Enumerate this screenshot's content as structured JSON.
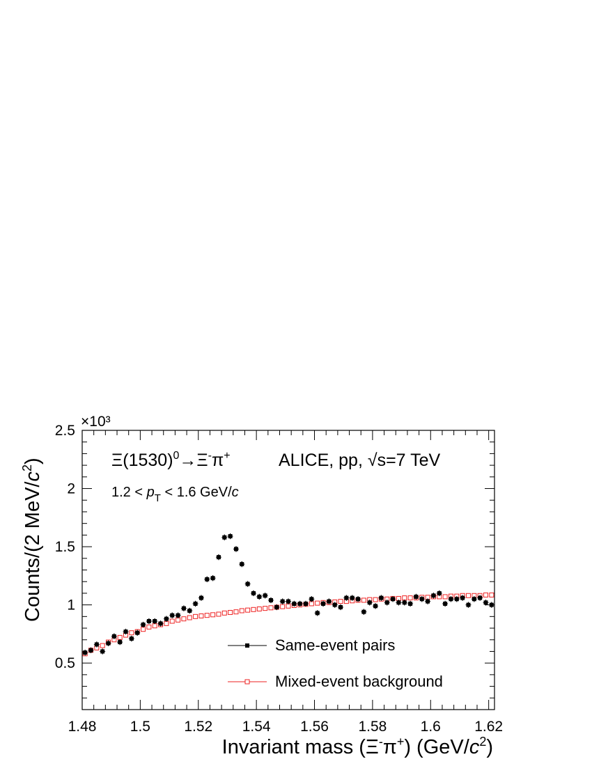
{
  "chart_data": {
    "type": "scatter",
    "xlabel": "Invariant mass (Ξ⁻π⁺) (GeV/c²)",
    "ylabel": "Counts/(2 MeV/c²)",
    "y_multiplier": "×10³",
    "xlim": [
      1.48,
      1.622
    ],
    "ylim": [
      0.1,
      2.5
    ],
    "x_ticks": [
      {
        "value": 1.48,
        "label": "1.48"
      },
      {
        "value": 1.5,
        "label": "1.5"
      },
      {
        "value": 1.52,
        "label": "1.52"
      },
      {
        "value": 1.54,
        "label": "1.54"
      },
      {
        "value": 1.56,
        "label": "1.56"
      },
      {
        "value": 1.58,
        "label": "1.58"
      },
      {
        "value": 1.6,
        "label": "1.6"
      },
      {
        "value": 1.62,
        "label": "1.62"
      }
    ],
    "y_ticks": [
      {
        "value": 0.5,
        "label": "0.5"
      },
      {
        "value": 1.0,
        "label": "1"
      },
      {
        "value": 1.5,
        "label": "1.5"
      },
      {
        "value": 2.0,
        "label": "2"
      },
      {
        "value": 2.5,
        "label": "2.5"
      }
    ],
    "annotations": {
      "decay": "Ξ(1530)⁰→Ξ⁻π⁺",
      "experiment": "ALICE, pp, √s=7 TeV",
      "pt_range": "1.2 < pT < 1.6 GeV/c"
    },
    "legend_position": "bottom-right",
    "series": [
      {
        "name": "Same-event pairs",
        "marker": "filled-square",
        "color": "#000000",
        "x": [
          1.481,
          1.483,
          1.485,
          1.487,
          1.489,
          1.491,
          1.493,
          1.495,
          1.497,
          1.499,
          1.501,
          1.503,
          1.505,
          1.507,
          1.509,
          1.511,
          1.513,
          1.515,
          1.517,
          1.519,
          1.521,
          1.523,
          1.525,
          1.527,
          1.529,
          1.531,
          1.533,
          1.535,
          1.537,
          1.539,
          1.541,
          1.543,
          1.545,
          1.547,
          1.549,
          1.551,
          1.553,
          1.555,
          1.557,
          1.559,
          1.561,
          1.563,
          1.565,
          1.567,
          1.569,
          1.571,
          1.573,
          1.575,
          1.577,
          1.579,
          1.581,
          1.583,
          1.585,
          1.587,
          1.589,
          1.591,
          1.593,
          1.595,
          1.597,
          1.599,
          1.601,
          1.603,
          1.605,
          1.607,
          1.609,
          1.611,
          1.613,
          1.615,
          1.617,
          1.619,
          1.621
        ],
        "y": [
          0.59,
          0.61,
          0.66,
          0.6,
          0.67,
          0.73,
          0.68,
          0.77,
          0.71,
          0.76,
          0.83,
          0.86,
          0.86,
          0.84,
          0.88,
          0.91,
          0.91,
          0.97,
          0.95,
          1.01,
          1.06,
          1.22,
          1.23,
          1.41,
          1.58,
          1.59,
          1.48,
          1.35,
          1.18,
          1.1,
          1.07,
          1.08,
          1.04,
          0.98,
          1.03,
          1.03,
          1.01,
          1.01,
          1.01,
          1.05,
          0.93,
          1.01,
          1.03,
          1.0,
          0.98,
          1.06,
          1.06,
          1.05,
          0.94,
          1.02,
          0.99,
          1.06,
          1.02,
          1.05,
          1.02,
          1.02,
          1.01,
          1.07,
          1.05,
          1.03,
          1.08,
          1.1,
          1.01,
          1.05,
          1.05,
          1.06,
          1.0,
          1.05,
          1.06,
          1.02,
          1.0
        ],
        "yerr": 0.025
      },
      {
        "name": "Mixed-event background",
        "marker": "open-square",
        "color": "#ee2222",
        "x": [
          1.481,
          1.483,
          1.485,
          1.487,
          1.489,
          1.491,
          1.493,
          1.495,
          1.497,
          1.499,
          1.501,
          1.503,
          1.505,
          1.507,
          1.509,
          1.511,
          1.513,
          1.515,
          1.517,
          1.519,
          1.521,
          1.523,
          1.525,
          1.527,
          1.529,
          1.531,
          1.533,
          1.535,
          1.537,
          1.539,
          1.541,
          1.543,
          1.545,
          1.547,
          1.549,
          1.551,
          1.553,
          1.555,
          1.557,
          1.559,
          1.561,
          1.563,
          1.565,
          1.567,
          1.569,
          1.571,
          1.573,
          1.575,
          1.577,
          1.579,
          1.581,
          1.583,
          1.585,
          1.587,
          1.589,
          1.591,
          1.593,
          1.595,
          1.597,
          1.599,
          1.601,
          1.603,
          1.605,
          1.607,
          1.609,
          1.611,
          1.613,
          1.615,
          1.617,
          1.619,
          1.621
        ],
        "y": [
          0.58,
          0.61,
          0.63,
          0.65,
          0.68,
          0.7,
          0.72,
          0.74,
          0.76,
          0.77,
          0.79,
          0.81,
          0.82,
          0.83,
          0.84,
          0.86,
          0.87,
          0.88,
          0.89,
          0.9,
          0.905,
          0.91,
          0.915,
          0.92,
          0.93,
          0.935,
          0.94,
          0.95,
          0.955,
          0.96,
          0.965,
          0.97,
          0.975,
          0.98,
          0.985,
          0.99,
          0.995,
          1.0,
          1.005,
          1.01,
          1.015,
          1.02,
          1.02,
          1.025,
          1.03,
          1.03,
          1.035,
          1.04,
          1.04,
          1.045,
          1.045,
          1.05,
          1.05,
          1.055,
          1.055,
          1.06,
          1.06,
          1.06,
          1.065,
          1.065,
          1.07,
          1.07,
          1.07,
          1.075,
          1.075,
          1.08,
          1.08,
          1.08,
          1.08,
          1.085,
          1.085
        ]
      }
    ]
  }
}
